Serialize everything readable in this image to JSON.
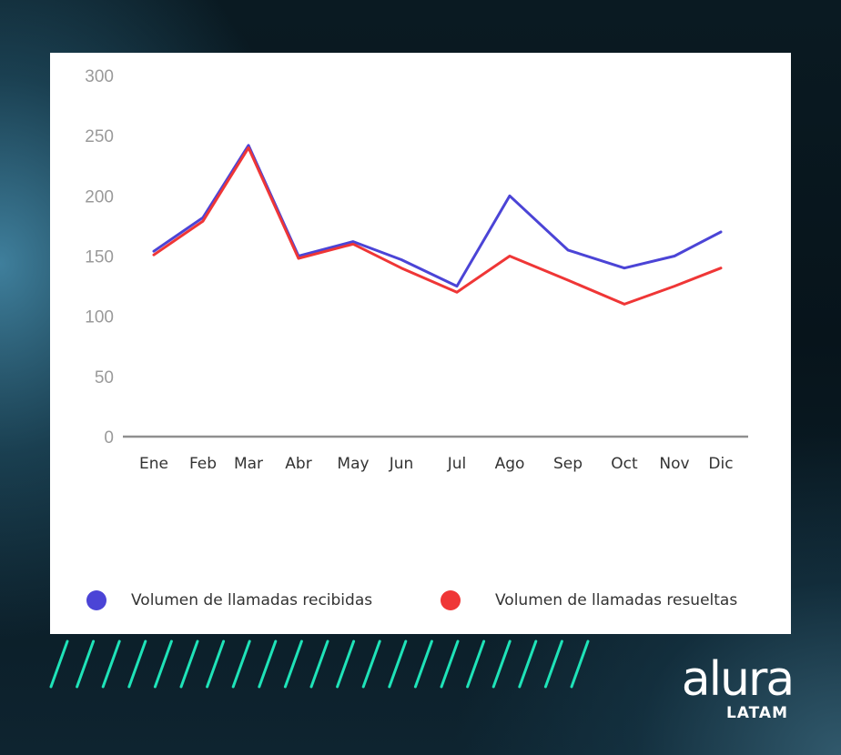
{
  "colors": {
    "series_1": "#4b44d6",
    "series_2": "#ef3636",
    "axis": "#8f8f8f",
    "accent_stripes": "#1fe3b8",
    "logo": "#ffffff"
  },
  "logo": {
    "word": "alura",
    "sub": "LATAM"
  },
  "chart_data": {
    "type": "line",
    "title": "",
    "xlabel": "",
    "ylabel": "",
    "categories": [
      "Ene",
      "Feb",
      "Mar",
      "Abr",
      "May",
      "Jun",
      "Jul",
      "Ago",
      "Sep",
      "Oct",
      "Nov",
      "Dic"
    ],
    "series": [
      {
        "name": "Volumen de llamadas recibidas",
        "color": "#4b44d6",
        "values": [
          154,
          182,
          242,
          150,
          162,
          147,
          125,
          200,
          155,
          140,
          150,
          170
        ]
      },
      {
        "name": "Volumen de llamadas resueltas",
        "color": "#ef3636",
        "values": [
          151,
          179,
          240,
          148,
          160,
          140,
          120,
          150,
          130,
          110,
          125,
          140
        ]
      }
    ],
    "ylim": [
      0,
      300
    ],
    "yticks": [
      "0",
      "50",
      "100",
      "150",
      "200",
      "250",
      "300"
    ],
    "grid": false,
    "legend_position": "bottom"
  }
}
